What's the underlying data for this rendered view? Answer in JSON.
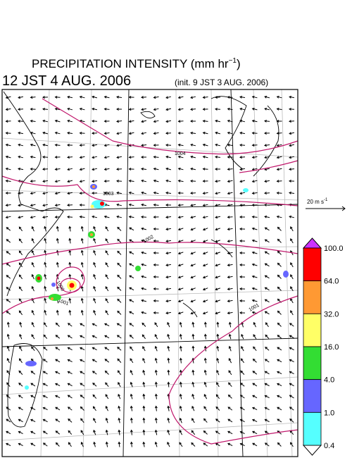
{
  "header": {
    "title": "PRECIPITATION INTENSITY (mm hr",
    "title_sup": "−1",
    "title_close": ")",
    "valid_time": "12 JST 4 AUG. 2006",
    "init_time": "(init. 9 JST 3 AUG. 2006)"
  },
  "vector_reference": {
    "text": "20 m s",
    "sup": "-1"
  },
  "isobars": [
    {
      "label": "1004"
    },
    {
      "label": "1003"
    },
    {
      "label": "1002"
    },
    {
      "label": "1001"
    },
    {
      "label": "1001"
    },
    {
      "label": "1000"
    }
  ],
  "colorbar": {
    "labels": [
      "100.0",
      "64.0",
      "32.0",
      "16.0",
      "4.0",
      "1.0",
      "0.4"
    ],
    "colors": [
      "#ff0000",
      "#ff9933",
      "#ffff66",
      "#33dd33",
      "#6666ff",
      "#55ffff"
    ],
    "over_color": "#cc33ff",
    "under_color": "#ffffff"
  }
}
